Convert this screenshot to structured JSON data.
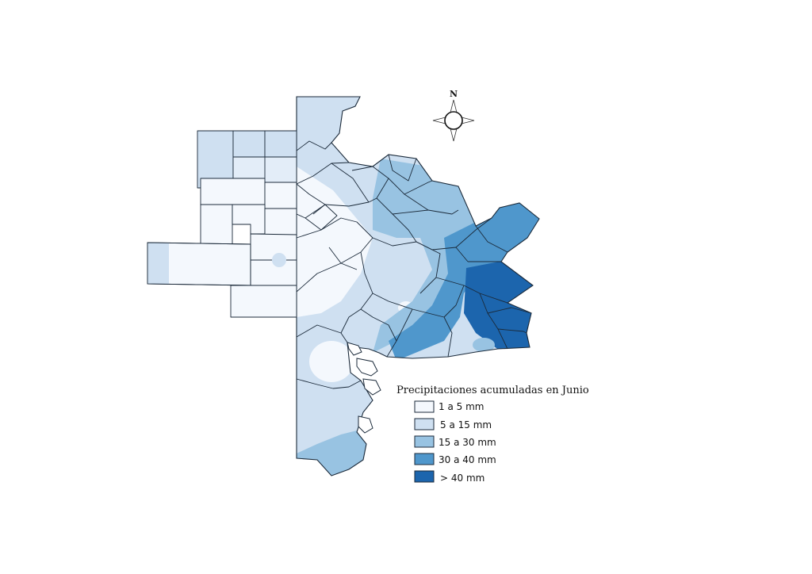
{
  "map": {
    "legend": {
      "title": "Precipitaciones acumuladas en Junio",
      "items": [
        {
          "label": "1 a 5 mm",
          "color": "#f4f8fd"
        },
        {
          "label": "5 a 15 mm",
          "color": "#cfe0f1"
        },
        {
          "label": "15 a 30 mm",
          "color": "#98c3e2"
        },
        {
          "label": "30 a 40 mm",
          "color": "#4f97cc"
        },
        {
          "label": "> 40 mm",
          "color": "#1c65ad"
        }
      ]
    },
    "compass": {
      "north_label": "N"
    },
    "colors": {
      "border": "#1b2a3a",
      "water": "#ffffff"
    }
  }
}
